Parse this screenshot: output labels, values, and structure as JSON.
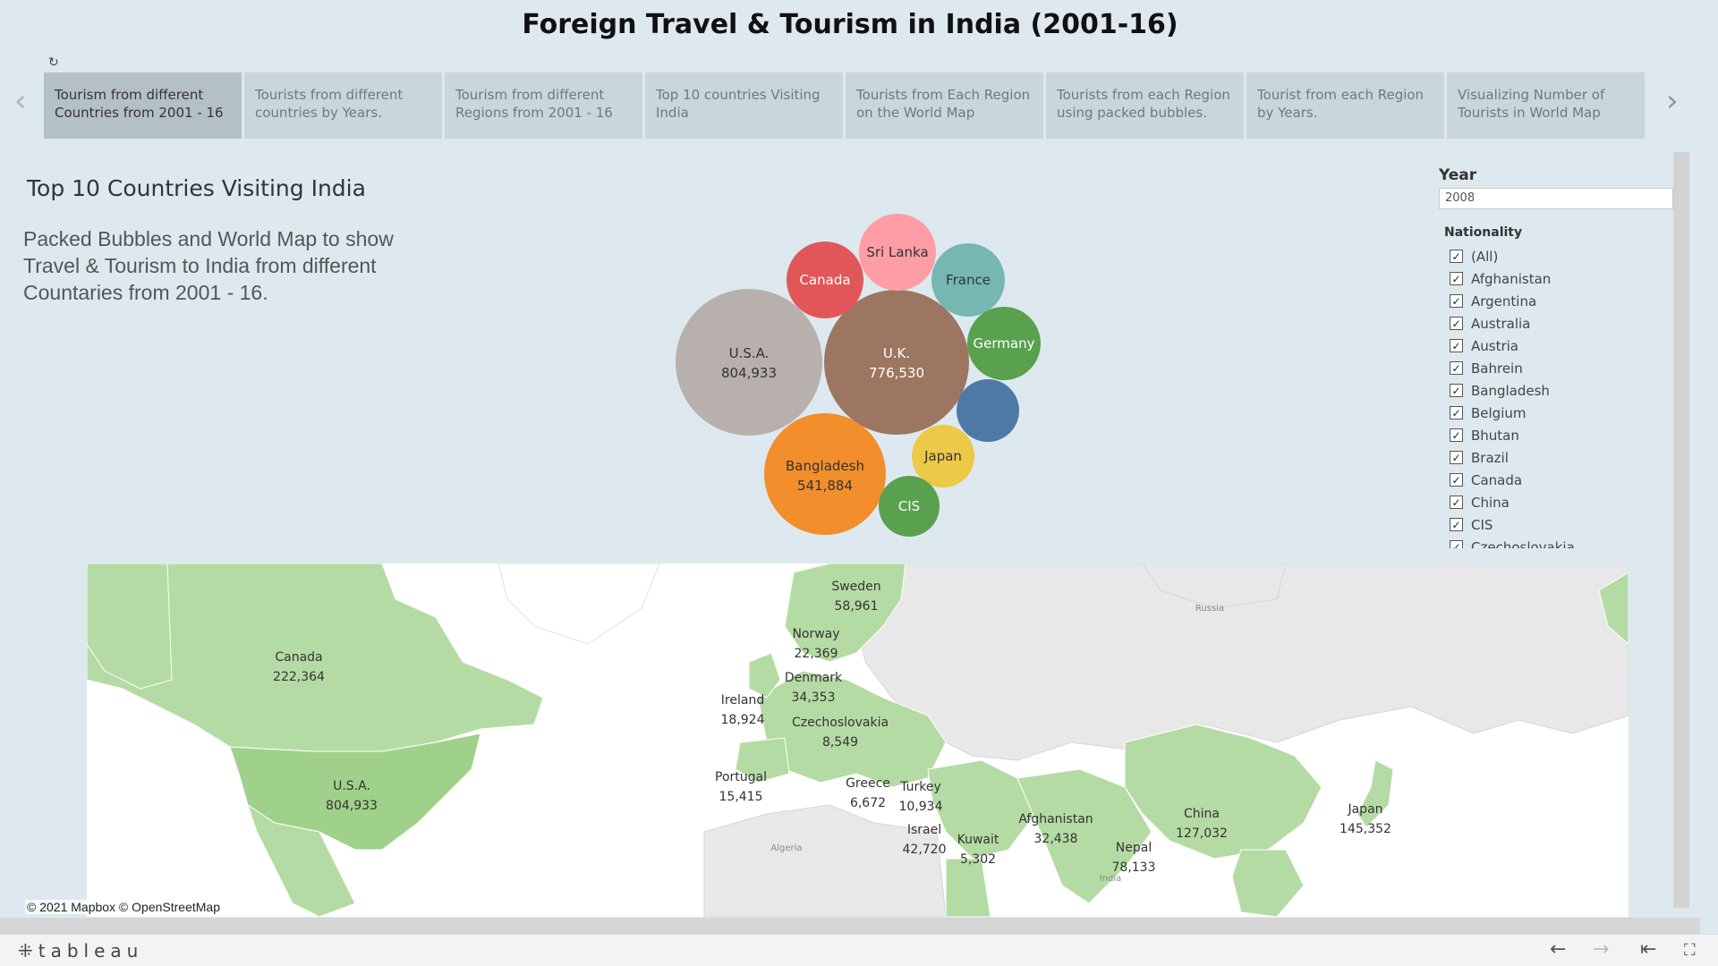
{
  "dashboard": {
    "title": "Foreign Travel & Tourism in India (2001-16)",
    "revert_icon": "revert-icon"
  },
  "tabs": [
    {
      "label": "Tourism from different Countries from 2001 - 16",
      "active": true
    },
    {
      "label": "Tourists from different countries by Years."
    },
    {
      "label": "Tourism from different Regions from 2001 - 16"
    },
    {
      "label": "Top 10 countries Visiting India"
    },
    {
      "label": "Tourists from Each Region on the World Map"
    },
    {
      "label": "Tourists from each Region using packed bubbles."
    },
    {
      "label": "Tourist from each Region by Years."
    },
    {
      "label": "Visualizing Number of Tourists in World Map"
    }
  ],
  "nav": {
    "prev_icon": "chevron-left-icon",
    "next_icon": "chevron-right-icon"
  },
  "sheet": {
    "title": "Top 10 Countries Visiting India",
    "description": "Packed Bubbles and World Map to show Travel & Tourism to India from different Countaries from 2001 - 16."
  },
  "bubbles": [
    {
      "name": "U.S.A.",
      "value": "804,933",
      "color": "#b8b0ac"
    },
    {
      "name": "U.K.",
      "value": "776,530",
      "color": "#9c7660"
    },
    {
      "name": "Bangladesh",
      "value": "541,884",
      "color": "#f28e2b"
    },
    {
      "name": "Canada",
      "value": "",
      "color": "#e15759"
    },
    {
      "name": "Sri Lanka",
      "value": "",
      "color": "#ff9da7"
    },
    {
      "name": "France",
      "value": "",
      "color": "#76b7b2"
    },
    {
      "name": "Germany",
      "value": "",
      "color": "#59a14f"
    },
    {
      "name": "",
      "value": "",
      "color": "#4e79a7"
    },
    {
      "name": "Japan",
      "value": "",
      "color": "#edc948"
    },
    {
      "name": "CIS",
      "value": "",
      "color": "#59a14f"
    }
  ],
  "filters": {
    "year_label": "Year",
    "year_value": "2008",
    "nationality_label": "Nationality",
    "nationalities": [
      "(All)",
      "Afghanistan",
      "Argentina",
      "Australia",
      "Austria",
      "Bahrein",
      "Bangladesh",
      "Belgium",
      "Bhutan",
      "Brazil",
      "Canada",
      "China",
      "CIS",
      "Czechoslovakia"
    ]
  },
  "map": {
    "labels": [
      {
        "name": "Canada",
        "value": "222,364"
      },
      {
        "name": "U.S.A.",
        "value": "804,933"
      },
      {
        "name": "Sweden",
        "value": "58,961"
      },
      {
        "name": "Norway",
        "value": "22,369"
      },
      {
        "name": "Denmark",
        "value": "34,353"
      },
      {
        "name": "Ireland",
        "value": "18,924"
      },
      {
        "name": "Czechoslovakia",
        "value": "8,549"
      },
      {
        "name": "Portugal",
        "value": "15,415"
      },
      {
        "name": "Greece",
        "value": "6,672"
      },
      {
        "name": "Turkey",
        "value": "10,934"
      },
      {
        "name": "Israel",
        "value": "42,720"
      },
      {
        "name": "Kuwait",
        "value": "5,302"
      },
      {
        "name": "Afghanistan",
        "value": "32,438"
      },
      {
        "name": "Nepal",
        "value": "78,133"
      },
      {
        "name": "China",
        "value": "127,032"
      },
      {
        "name": "Japan",
        "value": "145,352"
      }
    ],
    "basemap_labels": [
      "Russia",
      "Algeria",
      "India"
    ],
    "attribution": "© 2021 Mapbox  © OpenStreetMap",
    "land_color": "#e8e8e8",
    "highlight_color": "#b5dba4"
  },
  "statusbar": {
    "brand": "tableau",
    "undo_icon": "undo-icon",
    "redo_icon": "redo-icon",
    "revert_all_icon": "revert-all-icon",
    "fullscreen_icon": "fullscreen-icon"
  }
}
